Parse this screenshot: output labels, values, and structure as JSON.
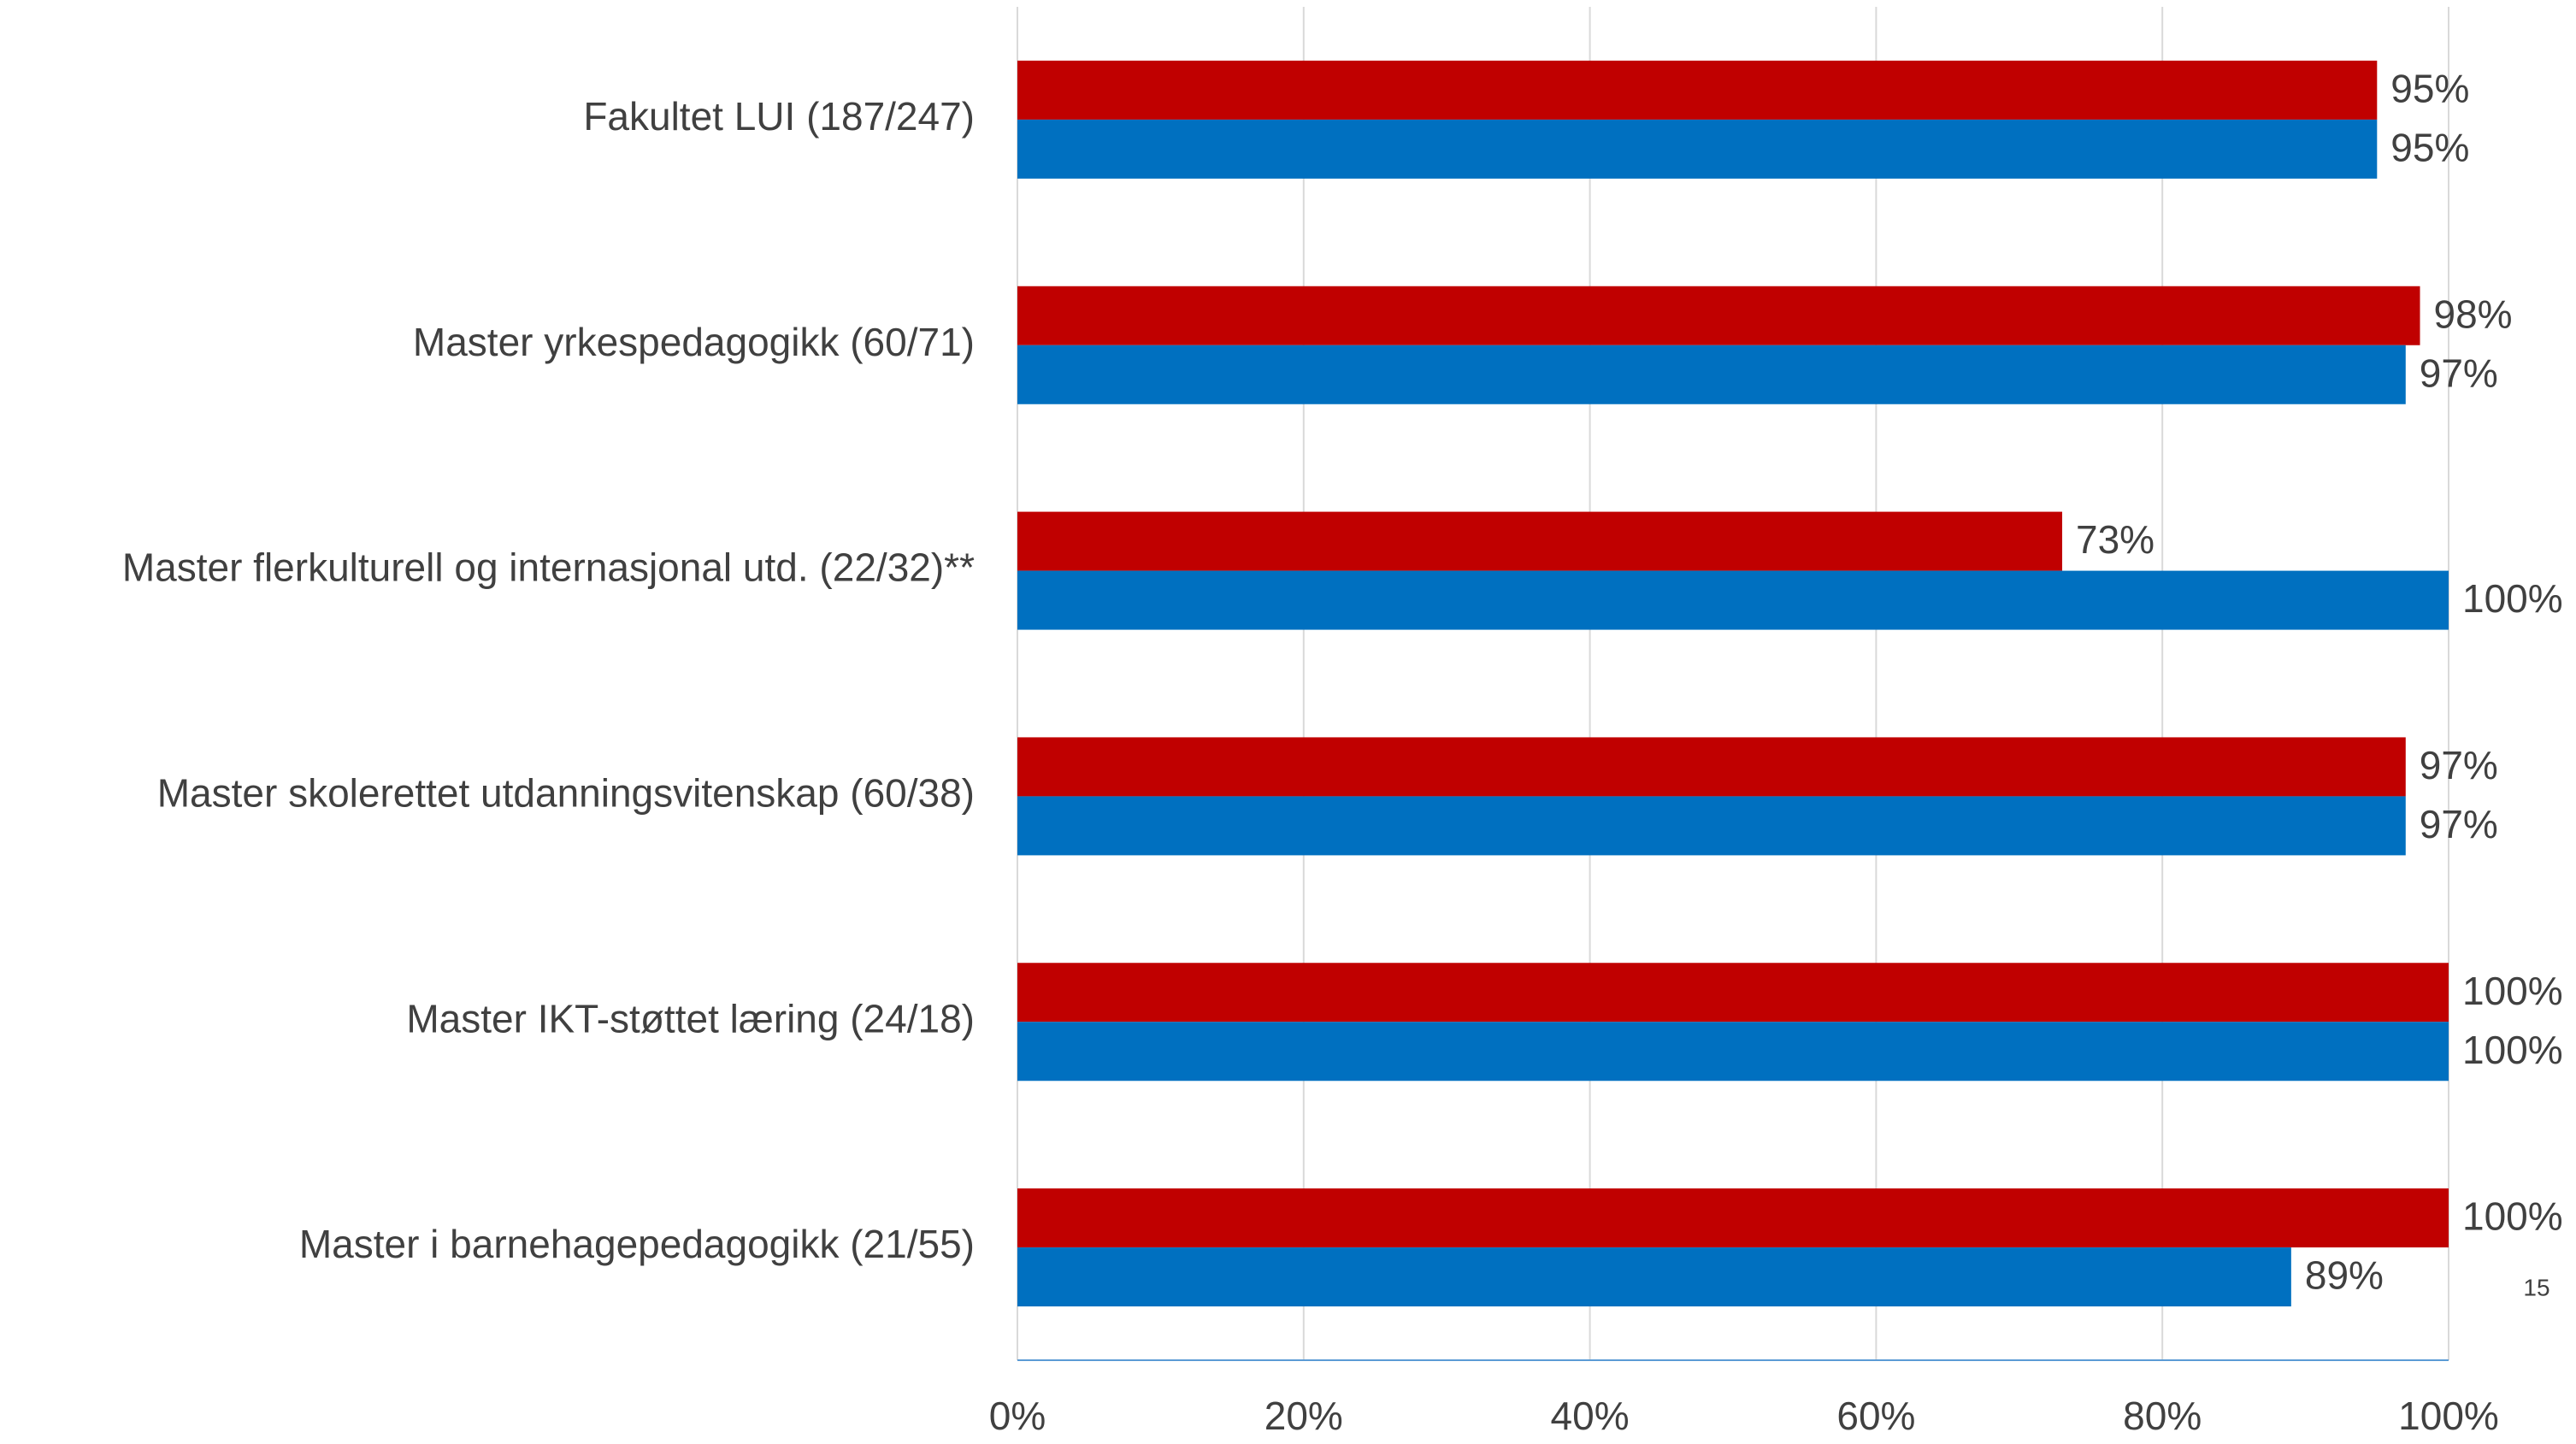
{
  "chart_data": {
    "type": "hbar",
    "categories": [
      "Fakultet LUI (187/247)",
      "Master yrkespedagogikk (60/71)",
      "Master flerkulturell og internasjonal utd. (22/32)**",
      "Master skolerettet utdanningsvitenskap (60/38)",
      "Master IKT-støttet læring (24/18)",
      "Master i barnehagepedagogikk (21/55)"
    ],
    "series": [
      {
        "color": "#c00000",
        "values": [
          95,
          98,
          73,
          97,
          100,
          100
        ],
        "value_labels": [
          "95%",
          "98%",
          "73%",
          "97%",
          "100%",
          "100%"
        ]
      },
      {
        "color": "#0070c0",
        "values": [
          95,
          97,
          100,
          97,
          100,
          89
        ],
        "value_labels": [
          "95%",
          "97%",
          "100%",
          "97%",
          "100%",
          "89%"
        ]
      }
    ],
    "xlim": [
      0,
      100
    ],
    "xticks": [
      {
        "value": 0,
        "label": "0%"
      },
      {
        "value": 20,
        "label": "20%"
      },
      {
        "value": 40,
        "label": "40%"
      },
      {
        "value": 60,
        "label": "60%"
      },
      {
        "value": 80,
        "label": "80%"
      },
      {
        "value": 100,
        "label": "100%"
      }
    ],
    "grid": true
  },
  "page_number": "15"
}
